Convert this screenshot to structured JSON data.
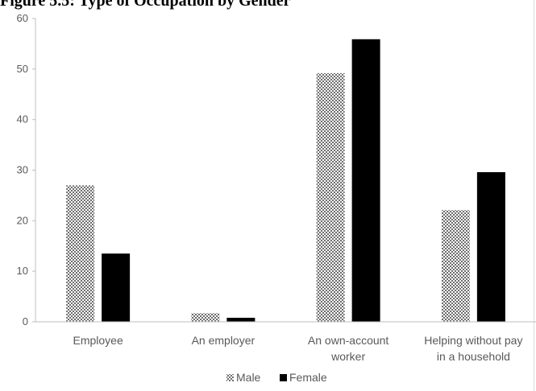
{
  "figure_title": "Figure 5.5: Type of  Occupation by Gender",
  "colors": {
    "female": "#000000",
    "male_pattern": "checkered-gray",
    "axis": "#bfbfbf",
    "text": "#595959"
  },
  "chart_data": {
    "type": "bar",
    "title": "Figure 5.5: Type of  Occupation by Gender",
    "xlabel": "",
    "ylabel": "",
    "ylim": [
      0,
      60
    ],
    "yticks": [
      "0",
      "10",
      "20",
      "30",
      "40",
      "50",
      "60"
    ],
    "grid": false,
    "legend_position": "bottom",
    "categories": [
      [
        "Employee"
      ],
      [
        "An employer"
      ],
      [
        "An own-account",
        "worker"
      ],
      [
        "Helping without pay",
        "in a household"
      ]
    ],
    "series": [
      {
        "name": "Male",
        "values": [
          27,
          1.7,
          49.2,
          22.1
        ]
      },
      {
        "name": "Female",
        "values": [
          13.5,
          0.8,
          55.9,
          29.6
        ]
      }
    ]
  }
}
